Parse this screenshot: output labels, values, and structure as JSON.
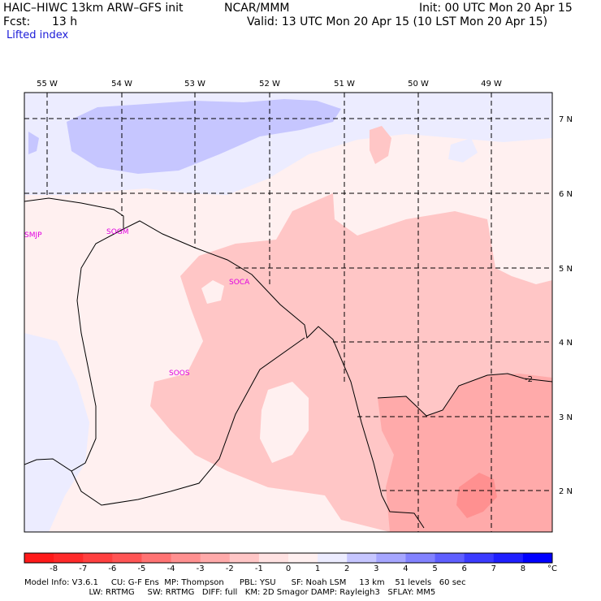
{
  "header": {
    "model_title": "HAIC–HIWC 13km ARW–GFS init",
    "center": "NCAR/MMM",
    "init": "Init: 00 UTC Mon 20 Apr 15",
    "fcst_label": "Fcst:",
    "fcst_value": "13 h",
    "valid": "Valid: 13 UTC Mon 20 Apr 15 (10 LST Mon 20 Apr 15)",
    "field_name": "Lifted index"
  },
  "map": {
    "lon_labels": [
      "55 W",
      "54 W",
      "53 W",
      "52 W",
      "51 W",
      "50 W",
      "49 W"
    ],
    "lat_labels": [
      "7 N",
      "6 N",
      "5 N",
      "4 N",
      "3 N",
      "2 N"
    ],
    "stations": [
      "SMJP",
      "SOGM",
      "SOCA",
      "SOOS"
    ],
    "contour_label": "-2"
  },
  "colorbar": {
    "labels": [
      "-8",
      "-7",
      "-6",
      "-5",
      "-4",
      "-3",
      "-2",
      "-1",
      "0",
      "1",
      "2",
      "3",
      "4",
      "5",
      "6",
      "7",
      "8"
    ],
    "unit": "°C",
    "colors": [
      "#ff1a1a",
      "#ff2a2a",
      "#ff4040",
      "#ff5555",
      "#ff7373",
      "#ff9090",
      "#ffaaaa",
      "#ffc6c6",
      "#ffe2e2",
      "#fff0f0",
      "#ececff",
      "#c6c6ff",
      "#a6a6ff",
      "#8282ff",
      "#5f5fff",
      "#3b3bff",
      "#1f1fff",
      "#0000ff"
    ]
  },
  "footer": {
    "line1": "Model Info: V3.6.1     CU: G-F Ens  MP: Thompson      PBL: YSU      SF: Noah LSM     13 km    51 levels   60 sec",
    "line2": "                         LW: RRTMG     SW: RRTMG   DIFF: full   KM: 2D Smagor DAMP: Rayleigh3   SFLAY: MM5"
  }
}
